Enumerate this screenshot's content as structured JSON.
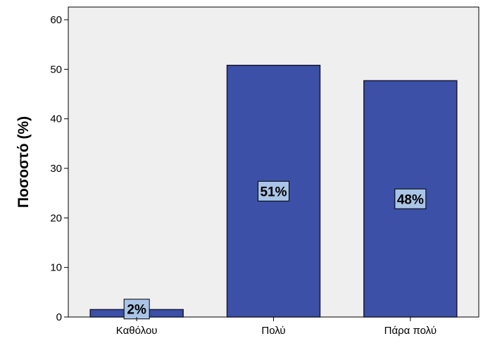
{
  "chart_data": {
    "type": "bar",
    "categories": [
      "Καθόλου",
      "Πολύ",
      "Πάρα πολύ"
    ],
    "values": [
      1.5,
      50.8,
      47.7
    ],
    "data_labels": [
      "2%",
      "51%",
      "48%"
    ],
    "title": "",
    "xlabel": "",
    "ylabel": "Ποσοστό (%)",
    "ylim": [
      0,
      60
    ],
    "yticks": [
      0,
      10,
      20,
      30,
      40,
      50,
      60
    ],
    "grid": false,
    "colors": {
      "bar_fill": "#3b50a6",
      "bar_stroke": "#1a1a3a",
      "label_box_fill": "#a9c4e6",
      "plot_background": "#efefef"
    }
  }
}
